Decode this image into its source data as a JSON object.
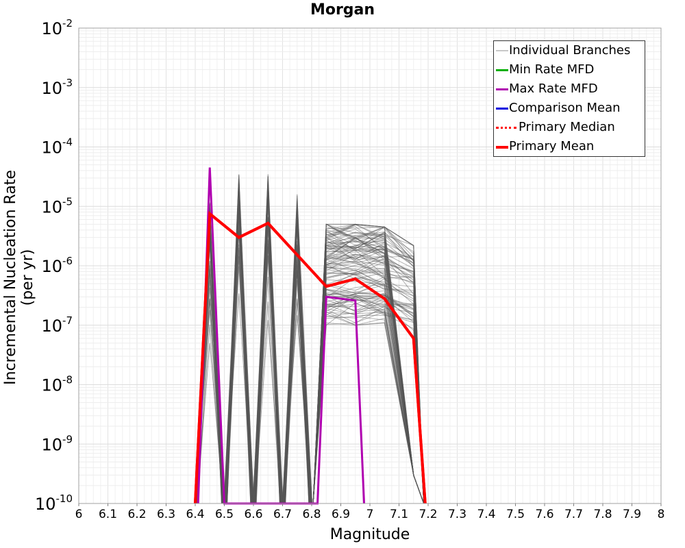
{
  "chart_data": {
    "type": "line",
    "title": "Morgan",
    "xlabel": "Magnitude",
    "ylabel": "Incremental Nucleation Rate (per yr)",
    "xlim": [
      6,
      8
    ],
    "ylim_log10": [
      -10,
      -2
    ],
    "y_scale": "log",
    "x_ticks": [
      "6",
      "6.1",
      "6.2",
      "6.3",
      "6.4",
      "6.5",
      "6.6",
      "6.7",
      "6.8",
      "6.9",
      "7",
      "7.1",
      "7.2",
      "7.3",
      "7.4",
      "7.5",
      "7.6",
      "7.7",
      "7.8",
      "7.9",
      "8"
    ],
    "y_ticks_exponent": [
      "-10",
      "-9",
      "-8",
      "-7",
      "-6",
      "-5",
      "-4",
      "-3",
      "-2"
    ],
    "y_tick_base": "10",
    "legend": [
      {
        "label": "Individual Branches",
        "color": "#b0b0b0",
        "style": "solid"
      },
      {
        "label": "Min Rate MFD",
        "color": "#00b000",
        "style": "solid"
      },
      {
        "label": "Max Rate MFD",
        "color": "#b000b0",
        "style": "solid"
      },
      {
        "label": "Comparison Mean",
        "color": "#0000e0",
        "style": "solid"
      },
      {
        "label": "Primary Median",
        "color": "#ff0000",
        "style": "dotted"
      },
      {
        "label": "Primary Mean",
        "color": "#ff0000",
        "style": "solid"
      }
    ],
    "series": [
      {
        "name": "Primary Mean",
        "color": "#ff0000",
        "width": 4,
        "points": [
          [
            6.4,
            1e-10
          ],
          [
            6.45,
            7.5e-06
          ],
          [
            6.55,
            3e-06
          ],
          [
            6.65,
            5.2e-06
          ],
          [
            6.85,
            4.5e-07
          ],
          [
            6.95,
            6e-07
          ],
          [
            7.05,
            2.8e-07
          ],
          [
            7.15,
            6e-08
          ],
          [
            7.19,
            1e-10
          ]
        ]
      },
      {
        "name": "Max Rate MFD",
        "color": "#b000b0",
        "width": 3,
        "points": [
          [
            6.41,
            1e-10
          ],
          [
            6.45,
            4.5e-05
          ],
          [
            6.5,
            1e-10
          ],
          [
            6.82,
            1e-10
          ],
          [
            6.85,
            3e-07
          ],
          [
            6.95,
            2.6e-07
          ],
          [
            6.98,
            1e-10
          ]
        ]
      }
    ],
    "branch_peaks": [
      {
        "m": 6.45,
        "hi": 1.2e-05,
        "lo": 1e-08
      },
      {
        "m": 6.55,
        "hi": 3.5e-05,
        "lo": 8e-08
      },
      {
        "m": 6.65,
        "hi": 3.5e-05,
        "lo": 8e-08
      },
      {
        "m": 6.75,
        "hi": 1.6e-05,
        "lo": 5e-08
      }
    ],
    "branch_group": {
      "m": [
        6.85,
        6.95,
        7.05,
        7.15
      ],
      "hi": [
        5e-06,
        5e-06,
        4.5e-06,
        2.2e-06
      ],
      "lo": [
        1e-07,
        1e-07,
        1e-07,
        6e-08
      ]
    }
  }
}
